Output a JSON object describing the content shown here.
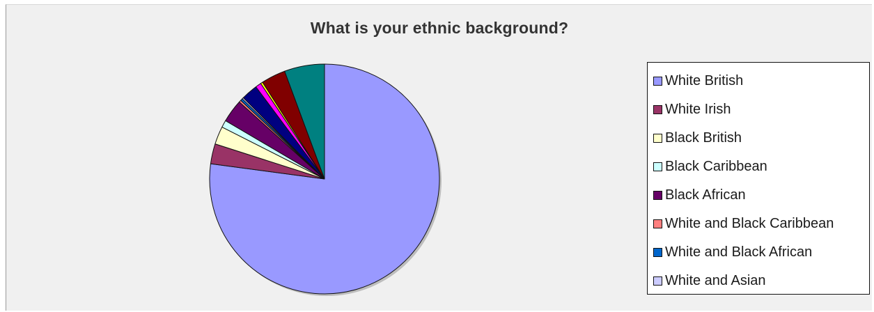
{
  "chart_data": {
    "type": "pie",
    "title": "What is your ethnic background?",
    "slices": [
      {
        "name": "White British",
        "value": 76.5,
        "color": "#9999ff"
      },
      {
        "name": "White Irish",
        "value": 2.8,
        "color": "#993366"
      },
      {
        "name": "Black British",
        "value": 2.5,
        "color": "#ffffcc"
      },
      {
        "name": "Black Caribbean",
        "value": 1.0,
        "color": "#ccffff"
      },
      {
        "name": "Black African",
        "value": 3.2,
        "color": "#660066"
      },
      {
        "name": "White and Black Caribbean",
        "value": 0.3,
        "color": "#ff8080"
      },
      {
        "name": "White and Black African",
        "value": 0.3,
        "color": "#0066cc"
      },
      {
        "name": "White and Asian",
        "value": 0.2,
        "color": "#ccccff"
      },
      {
        "name": "",
        "value": 2.3,
        "color": "#000080"
      },
      {
        "name": "",
        "value": 0.8,
        "color": "#ff00ff"
      },
      {
        "name": "",
        "value": 0.3,
        "color": "#ffff00"
      },
      {
        "name": "",
        "value": 3.4,
        "color": "#800000"
      },
      {
        "name": "",
        "value": 5.6,
        "color": "#008080"
      }
    ],
    "legend_position": "right"
  }
}
